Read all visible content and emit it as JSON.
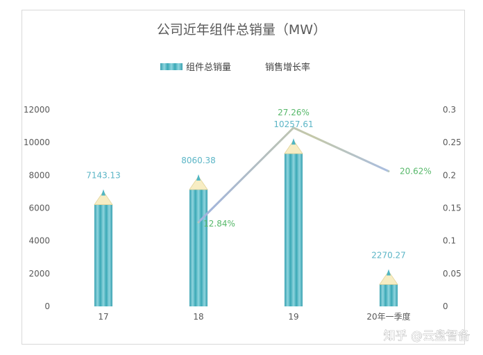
{
  "chart_data": {
    "type": "bar",
    "title": "公司近年组件总销量（MW）",
    "categories": [
      "17",
      "18",
      "19",
      "20年一季度"
    ],
    "series": [
      {
        "name": "组件总销量",
        "kind": "bar",
        "axis": "left",
        "values": [
          7143.13,
          8060.38,
          10257.61,
          2270.27
        ],
        "labels": [
          "7143.13",
          "8060.38",
          "10257.61",
          "2270.27"
        ],
        "color": "#4fb6c4"
      },
      {
        "name": "销售增长率",
        "kind": "line",
        "axis": "right",
        "values": [
          null,
          0.1284,
          0.2726,
          0.2062
        ],
        "labels": [
          "",
          "12.84%",
          "27.26%",
          "20.62%"
        ],
        "color": "#b8c9c0"
      }
    ],
    "y_left": {
      "ylim": [
        0,
        12000
      ],
      "ticks": [
        "0",
        "2000",
        "4000",
        "6000",
        "8000",
        "10000",
        "12000"
      ]
    },
    "y_right": {
      "ylim": [
        0,
        0.3
      ],
      "ticks": [
        "0",
        "0.05",
        "0.1",
        "0.15",
        "0.2",
        "0.25",
        "0.3"
      ]
    },
    "legend_position": "top-center",
    "grid": false
  },
  "watermark": "知乎 @云盘智备"
}
